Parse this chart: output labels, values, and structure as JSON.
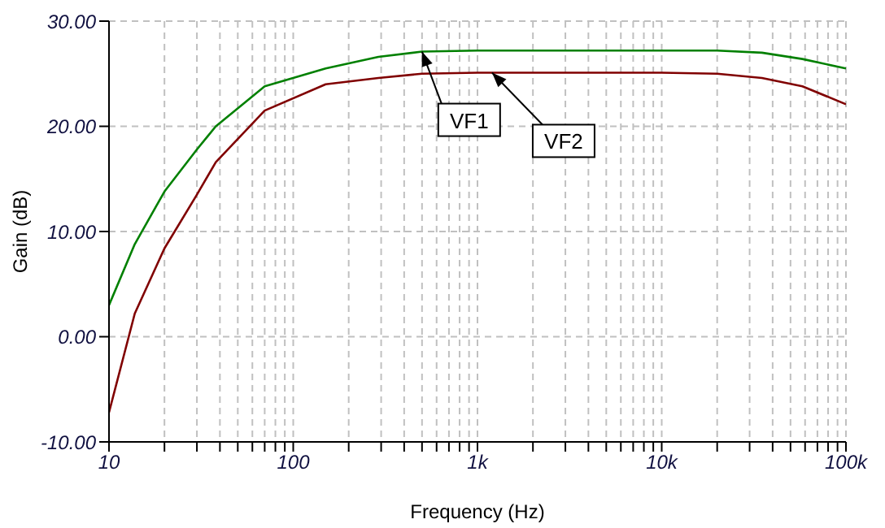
{
  "chart_data": {
    "type": "line",
    "xlabel": "Frequency (Hz)",
    "ylabel": "Gain (dB)",
    "log": "x",
    "grid": true,
    "legend": false,
    "marker": "none",
    "line_style": "solid",
    "xlim": [
      10,
      100000
    ],
    "xticks": [
      10,
      {
        "value": 20,
        "label": null
      },
      {
        "value": 30,
        "label": null
      },
      {
        "value": 40,
        "label": null
      },
      {
        "value": 50,
        "label": null
      },
      {
        "value": 60,
        "label": null
      },
      {
        "value": 70,
        "label": null
      },
      {
        "value": 80,
        "label": null
      },
      {
        "value": 90,
        "label": null
      },
      100,
      {
        "value": 200,
        "label": null
      },
      {
        "value": 300,
        "label": null
      },
      {
        "value": 400,
        "label": null
      },
      {
        "value": 500,
        "label": null
      },
      {
        "value": 600,
        "label": null
      },
      {
        "value": 700,
        "label": null
      },
      {
        "value": 800,
        "label": null
      },
      {
        "value": 900,
        "label": null
      },
      {
        "value": 1000,
        "label": "1k"
      },
      {
        "value": 2000,
        "label": null
      },
      {
        "value": 3000,
        "label": null
      },
      {
        "value": 4000,
        "label": null
      },
      {
        "value": 5000,
        "label": null
      },
      {
        "value": 6000,
        "label": null
      },
      {
        "value": 7000,
        "label": null
      },
      {
        "value": 8000,
        "label": null
      },
      {
        "value": 9000,
        "label": null
      },
      {
        "value": 10000,
        "label": "10k"
      },
      {
        "value": 20000,
        "label": null
      },
      {
        "value": 30000,
        "label": null
      },
      {
        "value": 40000,
        "label": null
      },
      {
        "value": 50000,
        "label": null
      },
      {
        "value": 60000,
        "label": null
      },
      {
        "value": 70000,
        "label": null
      },
      {
        "value": 80000,
        "label": null
      },
      {
        "value": 90000,
        "label": null
      },
      {
        "value": 100000,
        "label": "100k"
      }
    ],
    "ylim": [
      -10,
      30
    ],
    "yticks": [
      {
        "value": -10,
        "label": "-10.00"
      },
      {
        "value": 0,
        "label": "0.00"
      },
      {
        "value": 10,
        "label": "10.00"
      },
      {
        "value": 20,
        "label": "20.00"
      },
      {
        "value": 30,
        "label": "30.00"
      }
    ],
    "x": [
      10,
      13.8,
      20,
      30,
      38,
      70,
      150,
      290,
      500,
      1000,
      10000,
      20000,
      35000,
      58000,
      100000
    ],
    "series": [
      {
        "color": "#008000",
        "values": [
          3.0,
          8.8,
          13.8,
          17.8,
          20.0,
          23.8,
          25.5,
          26.6,
          27.1,
          27.2,
          27.2,
          27.2,
          27.0,
          26.4,
          25.5
        ]
      },
      {
        "color": "#800000",
        "values": [
          -7.2,
          2.2,
          8.4,
          13.5,
          16.6,
          21.5,
          24.0,
          24.6,
          25.0,
          25.1,
          25.1,
          25.0,
          24.6,
          23.8,
          22.1
        ]
      }
    ],
    "annotations": [
      {
        "text": "VF1",
        "x": 500,
        "y": 27.1
      },
      {
        "text": "VF2",
        "x": 1200,
        "y": 25.1
      }
    ]
  }
}
